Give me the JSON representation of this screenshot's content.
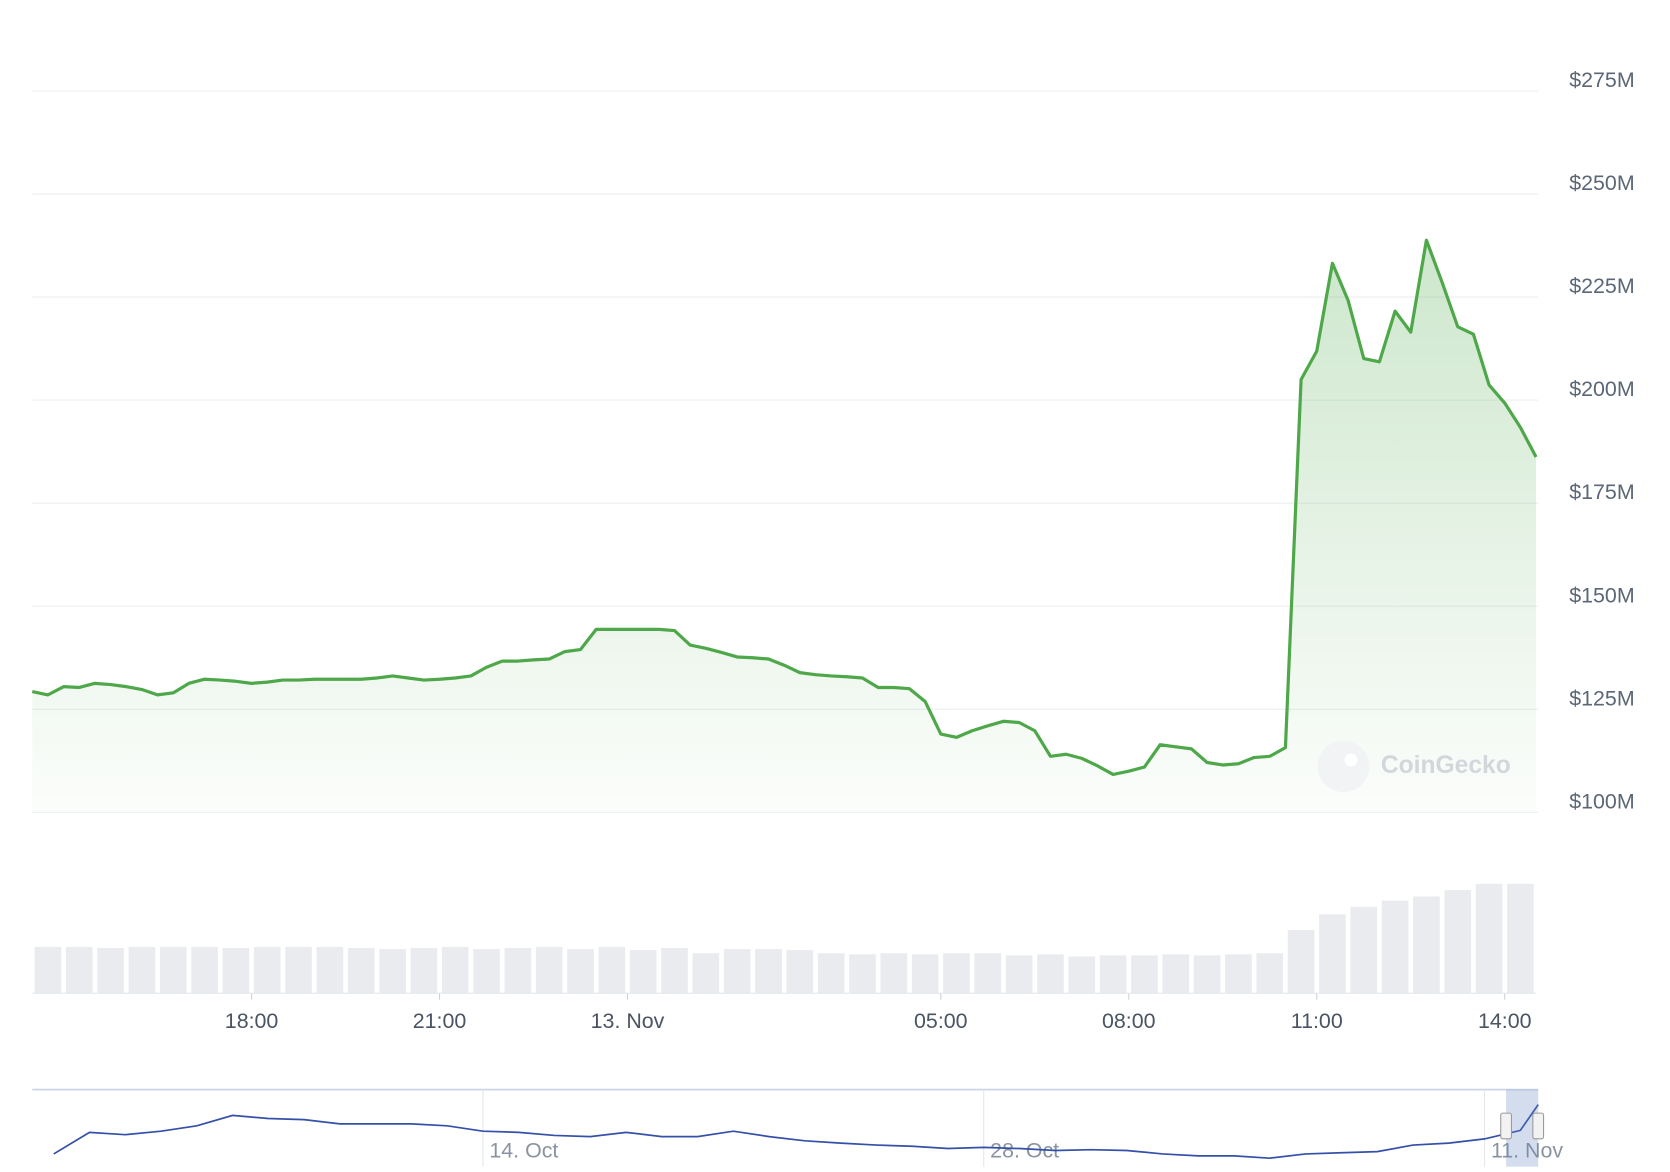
{
  "chart_data": [
    {
      "type": "area",
      "color": "#4ea84a",
      "watermark": "CoinGecko",
      "x": [
        14.5,
        14.75,
        15,
        15.25,
        15.5,
        15.75,
        16,
        16.25,
        16.5,
        16.75,
        17,
        17.25,
        17.5,
        17.75,
        18,
        18.25,
        18.5,
        18.75,
        19,
        19.25,
        19.5,
        19.75,
        20,
        20.25,
        20.5,
        20.75,
        21,
        21.25,
        21.5,
        21.75,
        22,
        22.25,
        22.5,
        22.75,
        23,
        23.25,
        23.5,
        23.75,
        24,
        24.25,
        24.5,
        24.75,
        25,
        25.25,
        25.5,
        25.75,
        26,
        26.25,
        26.5,
        26.75,
        27,
        27.25,
        27.5,
        27.75,
        28,
        28.25,
        28.5,
        28.75,
        29,
        29.25,
        29.5,
        29.75,
        30,
        30.25,
        30.5,
        30.75,
        31,
        31.25,
        31.5,
        31.75,
        32,
        32.25,
        32.5,
        32.75,
        33,
        33.25,
        33.5,
        33.75,
        34,
        34.25,
        34.5,
        34.75,
        35,
        35.25,
        35.5,
        35.75,
        36,
        36.25,
        36.5,
        36.75,
        37,
        37.25,
        37.5,
        37.75,
        38,
        38.25,
        38.5
      ],
      "values": [
        129.3,
        128.5,
        130.5,
        130.3,
        131.3,
        131,
        130.5,
        129.8,
        128.5,
        129,
        131.3,
        132.3,
        132.1,
        131.8,
        131.3,
        131.6,
        132.1,
        132.1,
        132.3,
        132.3,
        132.3,
        132.3,
        132.6,
        133.1,
        132.6,
        132.1,
        132.3,
        132.6,
        133.1,
        135.2,
        136.7,
        136.7,
        137,
        137.2,
        139,
        139.5,
        144.4,
        144.4,
        144.4,
        144.4,
        144.4,
        144.1,
        140.6,
        139.8,
        138.8,
        137.7,
        137.5,
        137.2,
        135.7,
        133.9,
        133.4,
        133.1,
        132.9,
        132.6,
        130.3,
        130.3,
        130,
        126.9,
        119,
        118.2,
        119.8,
        121,
        122.1,
        121.8,
        119.8,
        113.6,
        114.1,
        113.1,
        111.3,
        109.2,
        110,
        111,
        116.4,
        115.9,
        115.4,
        112.1,
        111.5,
        111.8,
        113.3,
        113.6,
        115.7,
        205,
        211.9,
        233.2,
        224.2,
        210.1,
        209.3,
        221.6,
        216.5,
        238.8,
        228.6,
        217.8,
        216,
        203.7,
        199.3,
        193.4,
        186.2
      ],
      "xlim": [
        14.5,
        38.5
      ],
      "xticks": [
        {
          "value": 18,
          "label": "18:00"
        },
        {
          "value": 21,
          "label": "21:00"
        },
        {
          "value": 24,
          "label": "13. Nov"
        },
        {
          "value": 29,
          "label": "05:00"
        },
        {
          "value": 32,
          "label": "08:00"
        },
        {
          "value": 35,
          "label": "11:00"
        },
        {
          "value": 38,
          "label": "14:00"
        }
      ],
      "ylim": [
        100,
        275
      ],
      "yticks": [
        {
          "value": 100,
          "label": "$100M"
        },
        {
          "value": 125,
          "label": "$125M"
        },
        {
          "value": 150,
          "label": "$150M"
        },
        {
          "value": 175,
          "label": "$175M"
        },
        {
          "value": 200,
          "label": "$200M"
        },
        {
          "value": 225,
          "label": "$225M"
        },
        {
          "value": 250,
          "label": "$250M"
        },
        {
          "value": 275,
          "label": "$275M"
        }
      ],
      "grid": true
    },
    {
      "type": "bar",
      "color": "#e9ebef",
      "x": [
        14.75,
        15.25,
        15.75,
        16.25,
        16.75,
        17.25,
        17.75,
        18.25,
        18.75,
        19.25,
        19.75,
        20.25,
        20.75,
        21.25,
        21.75,
        22.25,
        22.75,
        23.25,
        23.75,
        24.25,
        24.75,
        25.25,
        25.75,
        26.25,
        26.75,
        27.25,
        27.75,
        28.25,
        28.75,
        29.25,
        29.75,
        30.25,
        30.75,
        31.25,
        31.75,
        32.25,
        32.75,
        33.25,
        33.75,
        34.25,
        34.75,
        35.25,
        35.75,
        36.25,
        36.75,
        37.25,
        37.75,
        38.25
      ],
      "values": [
        44,
        44,
        43,
        44,
        44,
        44,
        43,
        44,
        44,
        44,
        43,
        42,
        43,
        44,
        42,
        43,
        44,
        42,
        44,
        41,
        43,
        38,
        42,
        42,
        41,
        38,
        37,
        38,
        37,
        38,
        38,
        36,
        37,
        35,
        36,
        36,
        37,
        36,
        37,
        38,
        60,
        75,
        82,
        88,
        92,
        98,
        104,
        104
      ],
      "xlim": [
        14.5,
        38.5
      ],
      "ylim": [
        0,
        120
      ]
    },
    {
      "type": "line",
      "color": "#3450a8",
      "x": [
        2,
        3,
        4,
        5,
        6,
        7,
        8,
        9,
        10,
        11,
        12,
        13,
        14,
        15,
        16,
        17,
        18,
        19,
        20,
        21,
        22,
        23,
        24,
        25,
        26,
        27,
        28,
        29,
        30,
        31,
        32,
        33,
        34,
        35,
        36,
        37,
        38,
        39,
        40,
        41,
        42,
        43,
        43.5
      ],
      "values": [
        83,
        139,
        133,
        142,
        156,
        183,
        175,
        172,
        161,
        161,
        161,
        156,
        142,
        139,
        131,
        128,
        139,
        128,
        128,
        142,
        128,
        117,
        111,
        106,
        103,
        97,
        100,
        97,
        92,
        94,
        92,
        83,
        78,
        78,
        72,
        83,
        86,
        89,
        106,
        111,
        122,
        144,
        211
      ],
      "xlim": [
        1.4,
        43.5
      ],
      "ylim": [
        50,
        250
      ],
      "xticks": [
        {
          "value": 14,
          "label": "14. Oct"
        },
        {
          "value": 28,
          "label": "28. Oct"
        },
        {
          "value": 42,
          "label": "11. Nov"
        }
      ]
    }
  ]
}
